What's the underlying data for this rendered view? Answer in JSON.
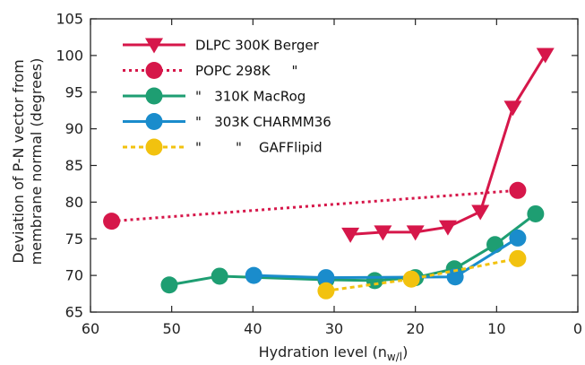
{
  "chart_data": {
    "type": "line",
    "title": "",
    "xlabel": "Hydration level (n",
    "xlabel_sub": "w/l",
    "xlabel_close": ")",
    "ylabel_line1": "Deviation of P-N vector from",
    "ylabel_line2": "membrane normal (degrees)",
    "xlim": [
      60,
      0
    ],
    "ylim": [
      65,
      105
    ],
    "x_reversed": true,
    "x_ticks": [
      60,
      50,
      40,
      30,
      20,
      10,
      0
    ],
    "y_ticks": [
      65,
      70,
      75,
      80,
      85,
      90,
      95,
      100,
      105
    ],
    "grid": false,
    "legend_position": "top-left",
    "series": [
      {
        "name": "DLPC 300K Berger",
        "color": "#d6174a",
        "marker": "triangle-down",
        "line_style": "solid",
        "x": [
          28,
          24,
          20,
          16,
          12,
          8,
          4
        ],
        "y": [
          75.6,
          75.9,
          75.9,
          76.6,
          78.7,
          92.9,
          100.1
        ]
      },
      {
        "name": "POPC 298K     \"",
        "color": "#d6174a",
        "marker": "circle",
        "line_style": "dotted",
        "x": [
          57.4,
          7.4
        ],
        "y": [
          77.4,
          81.6
        ]
      },
      {
        "name": "\"   310K MacRog",
        "color": "#1e9e72",
        "marker": "circle",
        "line_style": "solid",
        "x": [
          50.3,
          44.1,
          31,
          25,
          20,
          15.2,
          10.2,
          5.2
        ],
        "y": [
          68.7,
          69.9,
          69.4,
          69.3,
          69.7,
          70.9,
          74.2,
          78.4
        ]
      },
      {
        "name": "\"   303K CHARMM36",
        "color": "#1a8ccc",
        "marker": "circle",
        "line_style": "solid",
        "x": [
          39.9,
          31,
          15.1,
          7.4
        ],
        "y": [
          70.0,
          69.7,
          69.8,
          75.1
        ]
      },
      {
        "name": "\"        \"    GAFFlipid",
        "color": "#f2c20f",
        "marker": "circle",
        "line_style": "dashed",
        "x": [
          31,
          20.5,
          7.4
        ],
        "y": [
          67.9,
          69.5,
          72.3
        ]
      }
    ]
  }
}
